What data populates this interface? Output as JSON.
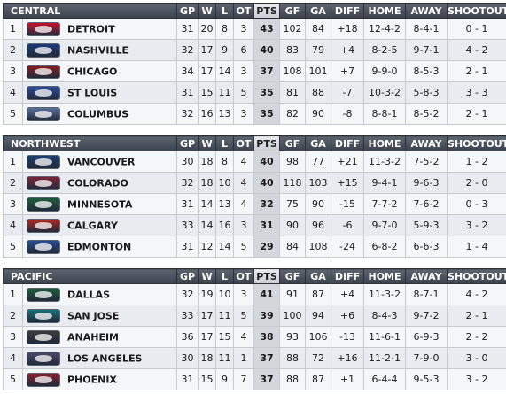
{
  "headers": {
    "gp": "GP",
    "w": "W",
    "l": "L",
    "ot": "OT",
    "pts": "PTS",
    "gf": "GF",
    "ga": "GA",
    "diff": "DIFF",
    "home": "HOME",
    "away": "AWAY",
    "shootout": "SHOOTOUT"
  },
  "divisions": [
    {
      "name": "CENTRAL",
      "teams": [
        {
          "rank": "1",
          "name": "DETROIT",
          "gp": "31",
          "w": "20",
          "l": "8",
          "ot": "3",
          "pts": "43",
          "gf": "102",
          "ga": "84",
          "diff": "+18",
          "home": "12-4-2",
          "away": "8-4-1",
          "shootout": "0 - 1",
          "logo_color": "#c8102e"
        },
        {
          "rank": "2",
          "name": "NASHVILLE",
          "gp": "32",
          "w": "17",
          "l": "9",
          "ot": "6",
          "pts": "40",
          "gf": "83",
          "ga": "79",
          "diff": "+4",
          "home": "8-2-5",
          "away": "9-7-1",
          "shootout": "4 - 2",
          "logo_color": "#1e3a7a"
        },
        {
          "rank": "3",
          "name": "CHICAGO",
          "gp": "34",
          "w": "17",
          "l": "14",
          "ot": "3",
          "pts": "37",
          "gf": "108",
          "ga": "101",
          "diff": "+7",
          "home": "9-9-0",
          "away": "8-5-3",
          "shootout": "2 - 1",
          "logo_color": "#8a1d1d"
        },
        {
          "rank": "4",
          "name": "ST LOUIS",
          "gp": "31",
          "w": "15",
          "l": "11",
          "ot": "5",
          "pts": "35",
          "gf": "81",
          "ga": "88",
          "diff": "-7",
          "home": "10-3-2",
          "away": "5-8-3",
          "shootout": "3 - 3",
          "logo_color": "#2a4a9a"
        },
        {
          "rank": "5",
          "name": "COLUMBUS",
          "gp": "32",
          "w": "16",
          "l": "13",
          "ot": "3",
          "pts": "35",
          "gf": "82",
          "ga": "90",
          "diff": "-8",
          "home": "8-8-1",
          "away": "8-5-2",
          "shootout": "2 - 1",
          "logo_color": "#5a6f9a"
        }
      ]
    },
    {
      "name": "NORTHWEST",
      "teams": [
        {
          "rank": "1",
          "name": "VANCOUVER",
          "gp": "30",
          "w": "18",
          "l": "8",
          "ot": "4",
          "pts": "40",
          "gf": "98",
          "ga": "77",
          "diff": "+21",
          "home": "11-3-2",
          "away": "7-5-2",
          "shootout": "1 - 2",
          "logo_color": "#1c3d6e"
        },
        {
          "rank": "2",
          "name": "COLORADO",
          "gp": "32",
          "w": "18",
          "l": "10",
          "ot": "4",
          "pts": "40",
          "gf": "118",
          "ga": "103",
          "diff": "+15",
          "home": "9-4-1",
          "away": "9-6-3",
          "shootout": "2 - 0",
          "logo_color": "#7a2538"
        },
        {
          "rank": "3",
          "name": "MINNESOTA",
          "gp": "31",
          "w": "14",
          "l": "13",
          "ot": "4",
          "pts": "32",
          "gf": "75",
          "ga": "90",
          "diff": "-15",
          "home": "7-7-2",
          "away": "7-6-2",
          "shootout": "0 - 3",
          "logo_color": "#1f5a3a"
        },
        {
          "rank": "4",
          "name": "CALGARY",
          "gp": "33",
          "w": "14",
          "l": "16",
          "ot": "3",
          "pts": "31",
          "gf": "90",
          "ga": "96",
          "diff": "-6",
          "home": "9-7-0",
          "away": "5-9-3",
          "shootout": "3 - 2",
          "logo_color": "#b3261e"
        },
        {
          "rank": "5",
          "name": "EDMONTON",
          "gp": "31",
          "w": "12",
          "l": "14",
          "ot": "5",
          "pts": "29",
          "gf": "84",
          "ga": "108",
          "diff": "-24",
          "home": "6-8-2",
          "away": "6-6-3",
          "shootout": "1 - 4",
          "logo_color": "#2a4d8f"
        }
      ]
    },
    {
      "name": "PACIFIC",
      "teams": [
        {
          "rank": "1",
          "name": "DALLAS",
          "gp": "32",
          "w": "19",
          "l": "10",
          "ot": "3",
          "pts": "41",
          "gf": "91",
          "ga": "87",
          "diff": "+4",
          "home": "11-3-2",
          "away": "8-7-1",
          "shootout": "4 - 2",
          "logo_color": "#1d5b3c"
        },
        {
          "rank": "2",
          "name": "SAN JOSE",
          "gp": "33",
          "w": "17",
          "l": "11",
          "ot": "5",
          "pts": "39",
          "gf": "100",
          "ga": "94",
          "diff": "+6",
          "home": "8-4-3",
          "away": "9-7-2",
          "shootout": "2 - 1",
          "logo_color": "#1a6f78"
        },
        {
          "rank": "3",
          "name": "ANAHEIM",
          "gp": "36",
          "w": "17",
          "l": "15",
          "ot": "4",
          "pts": "38",
          "gf": "93",
          "ga": "106",
          "diff": "-13",
          "home": "11-6-1",
          "away": "6-9-3",
          "shootout": "2 - 2",
          "logo_color": "#3a3a3a"
        },
        {
          "rank": "4",
          "name": "LOS ANGELES",
          "gp": "30",
          "w": "18",
          "l": "11",
          "ot": "1",
          "pts": "37",
          "gf": "88",
          "ga": "72",
          "diff": "+16",
          "home": "11-2-1",
          "away": "7-9-0",
          "shootout": "3 - 0",
          "logo_color": "#4a4a68"
        },
        {
          "rank": "5",
          "name": "PHOENIX",
          "gp": "31",
          "w": "15",
          "l": "9",
          "ot": "7",
          "pts": "37",
          "gf": "88",
          "ga": "87",
          "diff": "+1",
          "home": "6-4-4",
          "away": "9-5-3",
          "shootout": "3 - 2",
          "logo_color": "#8a1f2b"
        }
      ]
    }
  ]
}
